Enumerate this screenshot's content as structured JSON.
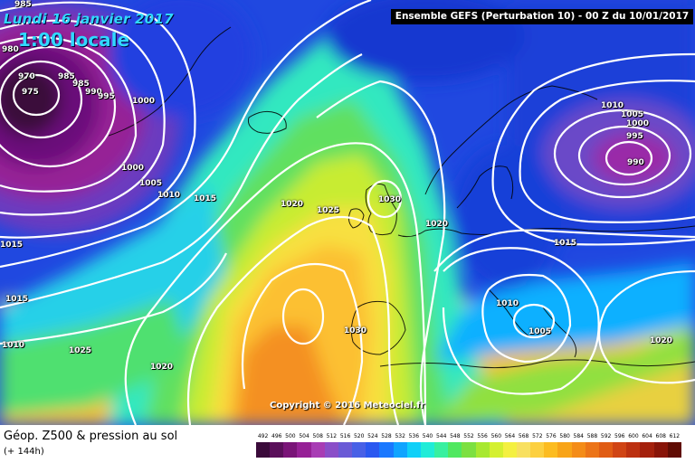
{
  "header": {
    "date": "Lundi 16 janvier 2017",
    "time": "1:00 locale",
    "model": "Ensemble GEFS  (Perturbation 10)  -  00 Z du 10/01/2017"
  },
  "copyright": "Copyright © 2016 Meteociel.fr",
  "footer": {
    "title": "Géop. Z500 & pression au sol",
    "subtitle": "(+ 144h)"
  },
  "legend": {
    "values": [
      "492",
      "496",
      "500",
      "504",
      "508",
      "512",
      "516",
      "520",
      "524",
      "528",
      "532",
      "536",
      "540",
      "544",
      "548",
      "552",
      "556",
      "560",
      "564",
      "568",
      "572",
      "576",
      "580",
      "584",
      "588",
      "592",
      "596",
      "600",
      "604",
      "608",
      "612"
    ],
    "colors": [
      "#3a0a3a",
      "#5a0f5a",
      "#7a1478",
      "#962096",
      "#a83cb4",
      "#8a4ec8",
      "#6a5ad6",
      "#4860e6",
      "#2a58f0",
      "#1a78ff",
      "#10a4ff",
      "#10d0f8",
      "#20ecd8",
      "#38f0a0",
      "#50e860",
      "#7ce040",
      "#a8e830",
      "#d4f030",
      "#f4f040",
      "#f8e060",
      "#fcd040",
      "#fcbc20",
      "#f8a418",
      "#f48c18",
      "#ec7418",
      "#e05c14",
      "#d04414",
      "#bc3010",
      "#a4200c",
      "#881408",
      "#600c04"
    ]
  },
  "isobars": [
    {
      "value": "985",
      "kind": "label-985a"
    },
    {
      "value": "980",
      "kind": "label-980"
    },
    {
      "value": "970",
      "kind": "label-970"
    },
    {
      "value": "975",
      "kind": "label-975"
    },
    {
      "value": "985",
      "kind": "label-985b"
    },
    {
      "value": "985",
      "kind": "label-985c"
    },
    {
      "value": "990",
      "kind": "label-990a"
    },
    {
      "value": "995",
      "kind": "label-995a"
    },
    {
      "value": "1000",
      "kind": "label-1000a"
    },
    {
      "value": "1000",
      "kind": "label-1000b"
    },
    {
      "value": "1005",
      "kind": "label-1005a"
    },
    {
      "value": "1010",
      "kind": "label-1010a"
    },
    {
      "value": "1015",
      "kind": "label-1015a"
    },
    {
      "value": "1015",
      "kind": "label-1015b"
    },
    {
      "value": "1015",
      "kind": "label-1015c"
    },
    {
      "value": "1010",
      "kind": "label-1010b"
    },
    {
      "value": "1025",
      "kind": "label-1025a"
    },
    {
      "value": "1020",
      "kind": "label-1020a"
    },
    {
      "value": "1020",
      "kind": "label-1020b"
    },
    {
      "value": "1025",
      "kind": "label-1025b"
    },
    {
      "value": "1030",
      "kind": "label-1030a"
    },
    {
      "value": "1020",
      "kind": "label-1020c"
    },
    {
      "value": "1030",
      "kind": "label-1030b"
    },
    {
      "value": "1010",
      "kind": "label-1010c"
    },
    {
      "value": "1005",
      "kind": "label-1005b"
    },
    {
      "value": "1000",
      "kind": "label-1000c"
    },
    {
      "value": "995",
      "kind": "label-995b"
    },
    {
      "value": "990",
      "kind": "label-990b"
    },
    {
      "value": "1015",
      "kind": "label-1015d"
    },
    {
      "value": "1010",
      "kind": "label-1010d"
    },
    {
      "value": "1005",
      "kind": "label-1005c"
    },
    {
      "value": "1020",
      "kind": "label-1020d"
    }
  ]
}
